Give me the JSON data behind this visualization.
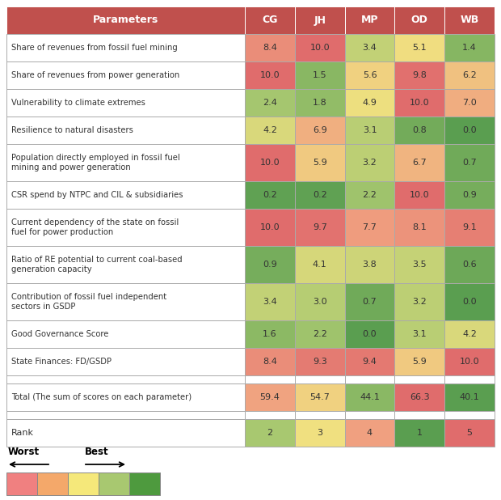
{
  "header": [
    "Parameters",
    "CG",
    "JH",
    "MP",
    "OD",
    "WB"
  ],
  "rows": [
    {
      "label": "Share of revenues from fossil fuel mining",
      "values": [
        8.4,
        10.0,
        3.4,
        5.1,
        1.4
      ],
      "double": false
    },
    {
      "label": "Share of revenues from power generation",
      "values": [
        10.0,
        1.5,
        5.6,
        9.8,
        6.2
      ],
      "double": false
    },
    {
      "label": "Vulnerability to climate extremes",
      "values": [
        2.4,
        1.8,
        4.9,
        10.0,
        7.0
      ],
      "double": false
    },
    {
      "label": "Resilience to natural disasters",
      "values": [
        4.2,
        6.9,
        3.1,
        0.8,
        0.0
      ],
      "double": false
    },
    {
      "label": "Population directly employed in fossil fuel\nmining and power generation",
      "values": [
        10.0,
        5.9,
        3.2,
        6.7,
        0.7
      ],
      "double": true
    },
    {
      "label": "CSR spend by NTPC and CIL & subsidiaries",
      "values": [
        0.2,
        0.2,
        2.2,
        10.0,
        0.9
      ],
      "double": false
    },
    {
      "label": "Current dependency of the state on fossil\nfuel for power production",
      "values": [
        10.0,
        9.7,
        7.7,
        8.1,
        9.1
      ],
      "double": true
    },
    {
      "label": "Ratio of RE potential to current coal-based\ngeneration capacity",
      "values": [
        0.9,
        4.1,
        3.8,
        3.5,
        0.6
      ],
      "double": true
    },
    {
      "label": "Contribution of fossil fuel independent\nsectors in GSDP",
      "values": [
        3.4,
        3.0,
        0.7,
        3.2,
        0.0
      ],
      "double": true
    },
    {
      "label": "Good Governance Score",
      "values": [
        1.6,
        2.2,
        0.0,
        3.1,
        4.2
      ],
      "double": false
    },
    {
      "label": "State Finances: FD/GSDP",
      "values": [
        8.4,
        9.3,
        9.4,
        5.9,
        10.0
      ],
      "double": false
    }
  ],
  "total_label": "Total (The sum of scores on each parameter)",
  "total_values": [
    59.4,
    54.7,
    44.1,
    66.3,
    40.1
  ],
  "rank_label": "Rank",
  "rank_values": [
    2,
    3,
    4,
    1,
    5
  ],
  "header_color": "#C0504D",
  "border_color": "#AAAAAA",
  "text_color": "#333333",
  "white": "#FFFFFF",
  "color_stops": [
    [
      0.0,
      [
        0.353,
        0.62,
        0.314
      ]
    ],
    [
      0.25,
      [
        0.659,
        0.784,
        0.439
      ]
    ],
    [
      0.5,
      [
        0.941,
        0.878,
        0.502
      ]
    ],
    [
      0.75,
      [
        0.941,
        0.627,
        0.502
      ]
    ],
    [
      1.0,
      [
        0.878,
        0.424,
        0.424
      ]
    ]
  ],
  "legend_colors": [
    "#F08080",
    "#F4A86A",
    "#F5E87A",
    "#A8C870",
    "#4E9A3E"
  ],
  "fig_width": 6.2,
  "fig_height": 6.18,
  "dpi": 100
}
